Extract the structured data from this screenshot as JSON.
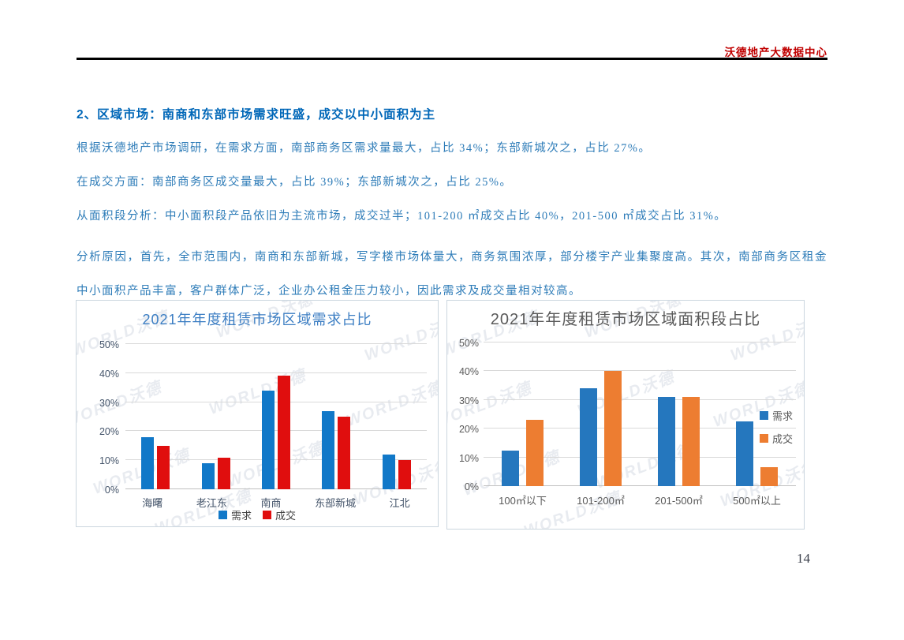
{
  "page": {
    "header": {
      "brand": "沃德地产大数据中心"
    },
    "page_number": "14"
  },
  "theme": {
    "brand_red": "#C00000",
    "heading_blue": "#0067B8",
    "body_blue": "#2E7CB8",
    "grid": "#D9D9D9",
    "chart_border": "#CBD6DF",
    "watermark_color": "rgba(110,130,160,0.16)"
  },
  "watermark_text": "WORLD沃德",
  "content": {
    "heading": "2、区域市场：南商和东部市场需求旺盛，成交以中小面积为主",
    "paragraphs": [
      "根据沃德地产市场调研，在需求方面，南部商务区需求量最大，占比 34%；东部新城次之，占比 27%。",
      "在成交方面：南部商务区成交量最大，占比 39%；东部新城次之，占比 25%。",
      "从面积段分析：中小面积段产品依旧为主流市场，成交过半；101-200 ㎡成交占比 40%，201-500 ㎡成交占比 31%。",
      "分析原因，首先，全市范围内，南商和东部新城，写字楼市场体量大，商务氛围浓厚，部分楼宇产业集聚度高。其次，南部商务区租金中小面积产品丰富，客户群体广泛，企业办公租金压力较小，因此需求及成交量相对较高。"
    ]
  },
  "chart_data": [
    {
      "type": "bar",
      "title": "2021年年度租赁市场区域需求占比",
      "title_color": "#3C7EC3",
      "label_color": "#44546A",
      "legend_text_color": "#404040",
      "categories": [
        "海曙",
        "老江东",
        "南商",
        "东部新城",
        "江北"
      ],
      "series": [
        {
          "name": "需求",
          "color": "#1178C8",
          "values": [
            18,
            9,
            34,
            27,
            12
          ]
        },
        {
          "name": "成交",
          "color": "#E00E0E",
          "values": [
            15,
            11,
            39,
            25,
            10
          ]
        }
      ],
      "ylabel": "",
      "xlabel": "",
      "ylim": [
        0,
        50
      ],
      "yticks": [
        "0%",
        "10%",
        "20%",
        "30%",
        "40%",
        "50%"
      ],
      "grid": true,
      "legend_position": "bottom"
    },
    {
      "type": "bar",
      "title": "2021年年度租赁市场区域面积段占比",
      "title_color": "#595959",
      "label_color": "#595959",
      "legend_text_color": "#595959",
      "categories": [
        "100㎡以下",
        "101-200㎡",
        "201-500㎡",
        "500㎡以上"
      ],
      "series": [
        {
          "name": "需求",
          "color": "#2577BE",
          "values": [
            12.5,
            34,
            31,
            22.5
          ]
        },
        {
          "name": "成交",
          "color": "#ED7D31",
          "values": [
            23,
            40,
            31,
            6.5
          ]
        }
      ],
      "ylabel": "",
      "xlabel": "",
      "ylim": [
        0,
        50
      ],
      "yticks": [
        "0%",
        "10%",
        "20%",
        "30%",
        "40%",
        "50%"
      ],
      "grid": true,
      "legend_position": "right"
    }
  ]
}
